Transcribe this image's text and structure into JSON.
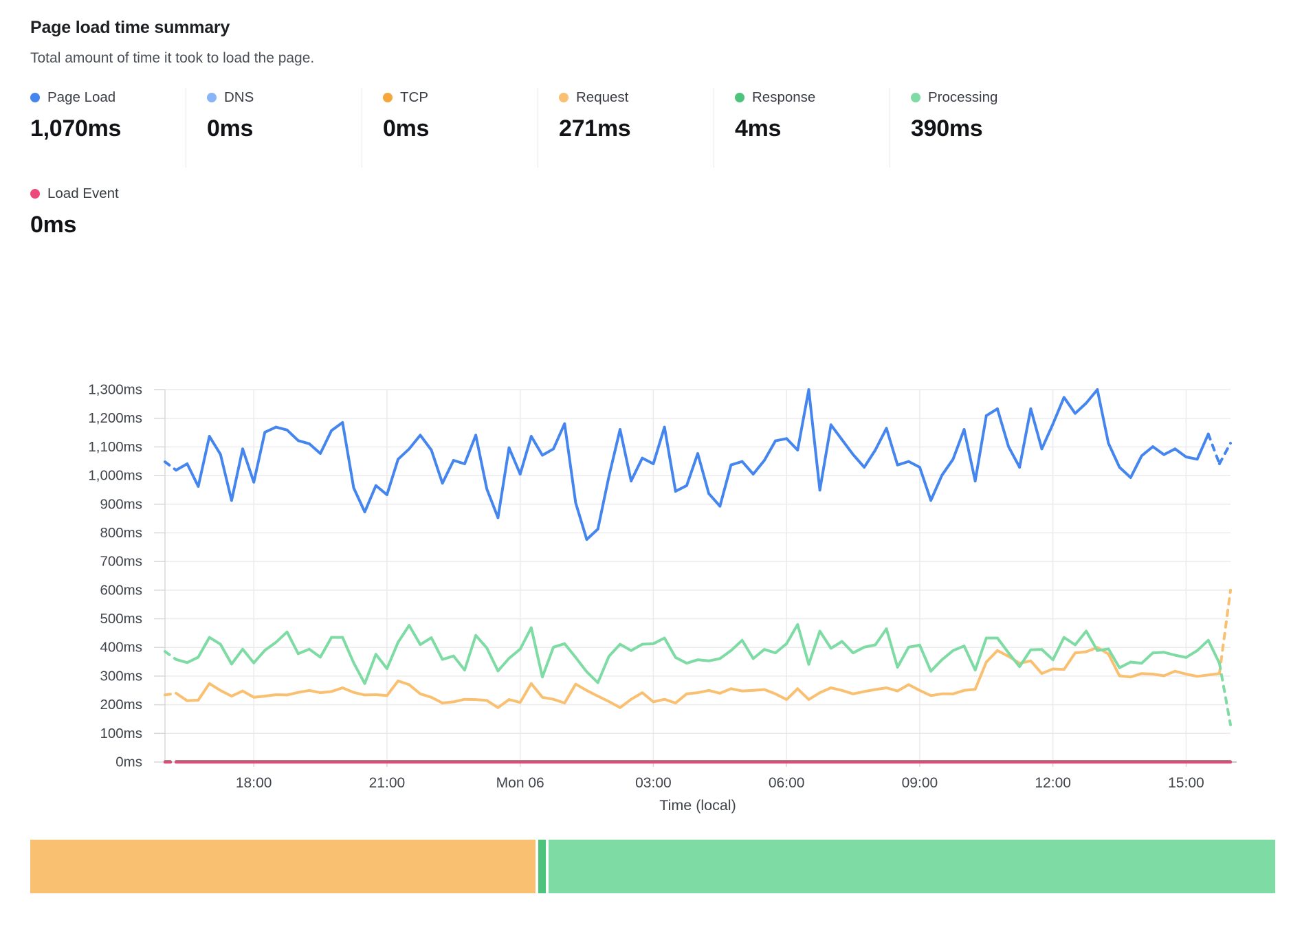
{
  "header": {
    "title": "Page load time summary",
    "subtitle": "Total amount of time it took to load the page."
  },
  "metrics": [
    {
      "label": "Page Load",
      "value": "1,070ms",
      "color": "#4585ee"
    },
    {
      "label": "DNS",
      "value": "0ms",
      "color": "#8ab4f8"
    },
    {
      "label": "TCP",
      "value": "0ms",
      "color": "#f5a73b"
    },
    {
      "label": "Request",
      "value": "271ms",
      "color": "#f8c070"
    },
    {
      "label": "Response",
      "value": "4ms",
      "color": "#4cc47c"
    },
    {
      "label": "Processing",
      "value": "390ms",
      "color": "#7ddba3"
    }
  ],
  "metrics_row2": [
    {
      "label": "Load Event",
      "value": "0ms",
      "color": "#ed4a7c"
    }
  ],
  "chart_data": {
    "type": "line",
    "unit": "ms",
    "xlabel": "Time (local)",
    "ylim": [
      0,
      1300
    ],
    "ytick_step": 100,
    "grid": true,
    "x_count": 97,
    "xticks": [
      {
        "index": 8,
        "label": "18:00"
      },
      {
        "index": 20,
        "label": "21:00"
      },
      {
        "index": 32,
        "label": "Mon 06"
      },
      {
        "index": 44,
        "label": "03:00"
      },
      {
        "index": 56,
        "label": "06:00"
      },
      {
        "index": 68,
        "label": "09:00"
      },
      {
        "index": 80,
        "label": "12:00"
      },
      {
        "index": 92,
        "label": "15:00"
      }
    ],
    "series": [
      {
        "name": "DNS",
        "color": "#8ab4f8",
        "width": 2,
        "constant": 0,
        "dash_first": 1,
        "dash_last": 0
      },
      {
        "name": "TCP",
        "color": "#f5a73b",
        "width": 2,
        "constant": 0,
        "dash_first": 1,
        "dash_last": 0
      },
      {
        "name": "Request",
        "color": "#f8c070",
        "width": 4,
        "dash_first": 1,
        "dash_last": 1,
        "values": [
          234,
          240,
          214,
          216,
          274,
          250,
          230,
          248,
          226,
          230,
          235,
          234,
          243,
          250,
          242,
          246,
          259,
          243,
          234,
          235,
          232,
          283,
          270,
          238,
          226,
          206,
          210,
          219,
          218,
          215,
          190,
          218,
          208,
          274,
          226,
          219,
          206,
          272,
          250,
          230,
          211,
          190,
          219,
          242,
          210,
          219,
          206,
          238,
          242,
          250,
          240,
          256,
          248,
          250,
          253,
          238,
          218,
          256,
          218,
          242,
          259,
          250,
          238,
          246,
          253,
          259,
          248,
          270,
          250,
          232,
          238,
          238,
          250,
          254,
          349,
          389,
          369,
          345,
          353,
          309,
          325,
          323,
          381,
          385,
          400,
          377,
          301,
          297,
          309,
          307,
          301,
          317,
          307,
          299,
          304,
          309,
          600
        ]
      },
      {
        "name": "Processing",
        "color": "#7ddba3",
        "width": 4,
        "dash_first": 1,
        "dash_last": 1,
        "values": [
          386,
          358,
          347,
          366,
          435,
          411,
          342,
          394,
          346,
          390,
          418,
          454,
          378,
          394,
          366,
          435,
          435,
          346,
          274,
          376,
          326,
          418,
          477,
          410,
          434,
          358,
          370,
          321,
          442,
          398,
          318,
          362,
          394,
          469,
          297,
          401,
          413,
          365,
          315,
          277,
          369,
          411,
          389,
          411,
          413,
          433,
          365,
          345,
          357,
          353,
          361,
          389,
          425,
          361,
          393,
          381,
          413,
          480,
          341,
          457,
          397,
          421,
          381,
          401,
          409,
          465,
          331,
          401,
          408,
          317,
          357,
          389,
          405,
          321,
          433,
          433,
          381,
          333,
          392,
          393,
          357,
          435,
          409,
          457,
          389,
          395,
          329,
          349,
          345,
          381,
          383,
          373,
          365,
          389,
          425,
          345,
          130
        ]
      },
      {
        "name": "Page Load",
        "color": "#4585ee",
        "width": 4,
        "dash_first": 1,
        "dash_last": 2,
        "values": [
          1048,
          1019,
          1041,
          962,
          1137,
          1074,
          913,
          1093,
          977,
          1151,
          1169,
          1159,
          1122,
          1111,
          1077,
          1157,
          1185,
          957,
          873,
          965,
          933,
          1057,
          1093,
          1141,
          1089,
          973,
          1053,
          1041,
          1141,
          953,
          853,
          1097,
          1005,
          1137,
          1071,
          1093,
          1181,
          905,
          777,
          813,
          997,
          1161,
          981,
          1061,
          1041,
          1169,
          945,
          965,
          1077,
          937,
          893,
          1037,
          1049,
          1005,
          1053,
          1121,
          1129,
          1089,
          1300,
          949,
          1177,
          1125,
          1073,
          1029,
          1089,
          1165,
          1037,
          1049,
          1029,
          913,
          1001,
          1057,
          1161,
          981,
          1209,
          1233,
          1101,
          1029,
          1233,
          1093,
          1180,
          1273,
          1217,
          1253,
          1300,
          1113,
          1029,
          993,
          1069,
          1101,
          1073,
          1093,
          1065,
          1057,
          1145,
          1041,
          1113
        ]
      },
      {
        "name": "Response",
        "color": "#4cc47c",
        "width": 2.5,
        "constant": 4,
        "dash_first": 1,
        "dash_last": 0
      },
      {
        "name": "Load Event",
        "color": "#e2497b",
        "width": 4.5,
        "constant": 0,
        "dash_first": 1,
        "dash_last": 0
      }
    ]
  },
  "breakdown_bar": {
    "segments": [
      {
        "name": "Request",
        "ms": 271,
        "color": "#f8c070"
      },
      {
        "name": "Response",
        "ms": 4,
        "color": "#4cc47c"
      },
      {
        "name": "Processing",
        "ms": 390,
        "color": "#7ddba3"
      }
    ]
  }
}
